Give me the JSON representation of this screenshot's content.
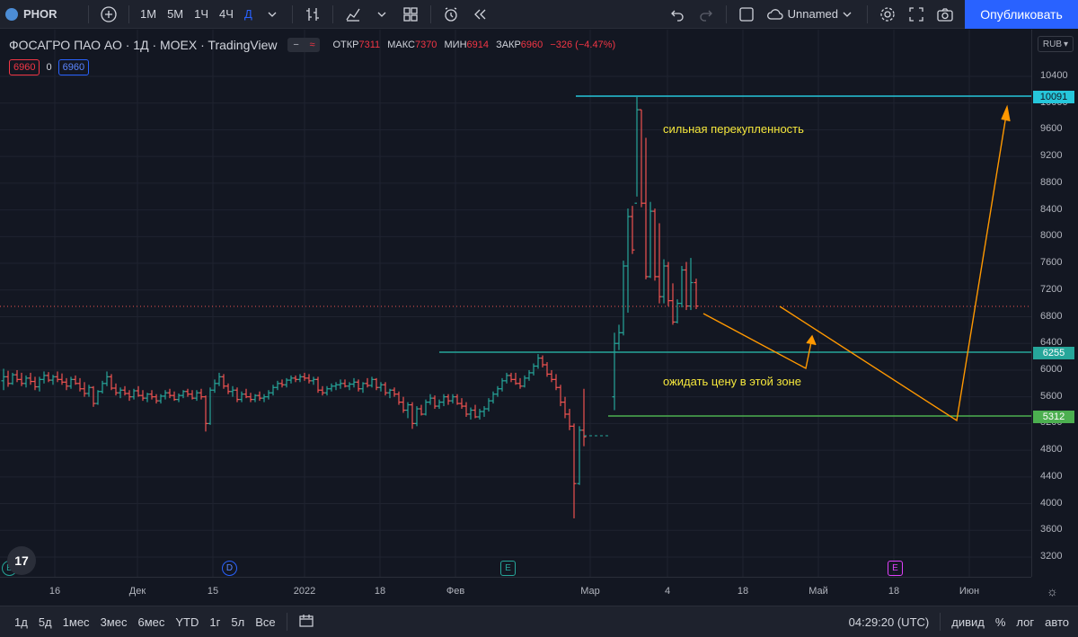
{
  "toolbar": {
    "symbol": "PHOR",
    "intervals": [
      "1М",
      "5М",
      "1Ч",
      "4Ч",
      "Д"
    ],
    "active_interval": "Д",
    "layout_name": "Unnamed",
    "publish_label": "Опубликовать"
  },
  "legend": {
    "title": "ФОСАГРО ПАО АО · 1Д · MOEX · TradingView",
    "open_label": "ОТКР",
    "open": "7311",
    "high_label": "МАКС",
    "high": "7370",
    "low_label": "МИН",
    "low": "6914",
    "close_label": "ЗАКР",
    "close": "6960",
    "change": "−326 (−4.47%)",
    "sell_price": "6960",
    "spread": "0",
    "buy_price": "6960"
  },
  "currency": "RUB",
  "price_axis": {
    "ticks": [
      "10400",
      "10000",
      "9600",
      "9200",
      "8800",
      "8400",
      "8000",
      "7600",
      "7200",
      "6800",
      "6400",
      "6000",
      "5600",
      "5200",
      "4800",
      "4400",
      "4000",
      "3600",
      "3200"
    ],
    "labels": [
      {
        "value": "10091",
        "color": "#26c6da"
      },
      {
        "value": "6255",
        "color": "#26a69a"
      },
      {
        "value": "5312",
        "color": "#4caf50"
      }
    ]
  },
  "time_axis": {
    "ticks": [
      "16",
      "Дек",
      "15",
      "2022",
      "18",
      "Фев",
      "Мар",
      "4",
      "18",
      "Май",
      "18",
      "Июн"
    ]
  },
  "annotations": {
    "overbought": "сильная перекупленность",
    "wait_zone": "ожидать цену в этой зоне"
  },
  "markers": [
    "E",
    "D",
    "E",
    "E"
  ],
  "bottom_bar": {
    "ranges": [
      "1д",
      "5д",
      "1мес",
      "3мес",
      "6мес",
      "YTD",
      "1г",
      "5л",
      "Все"
    ],
    "time": "04:29:20 (UTC)",
    "options": [
      "дивид",
      "%",
      "лог",
      "авто"
    ]
  },
  "colors": {
    "up": "#26a69a",
    "down": "#ef5350",
    "line_top": "#26c6da",
    "line_mid": "#26a69a",
    "line_low": "#4caf50",
    "arrow": "#ff9800",
    "current_price": "#ef5350"
  }
}
